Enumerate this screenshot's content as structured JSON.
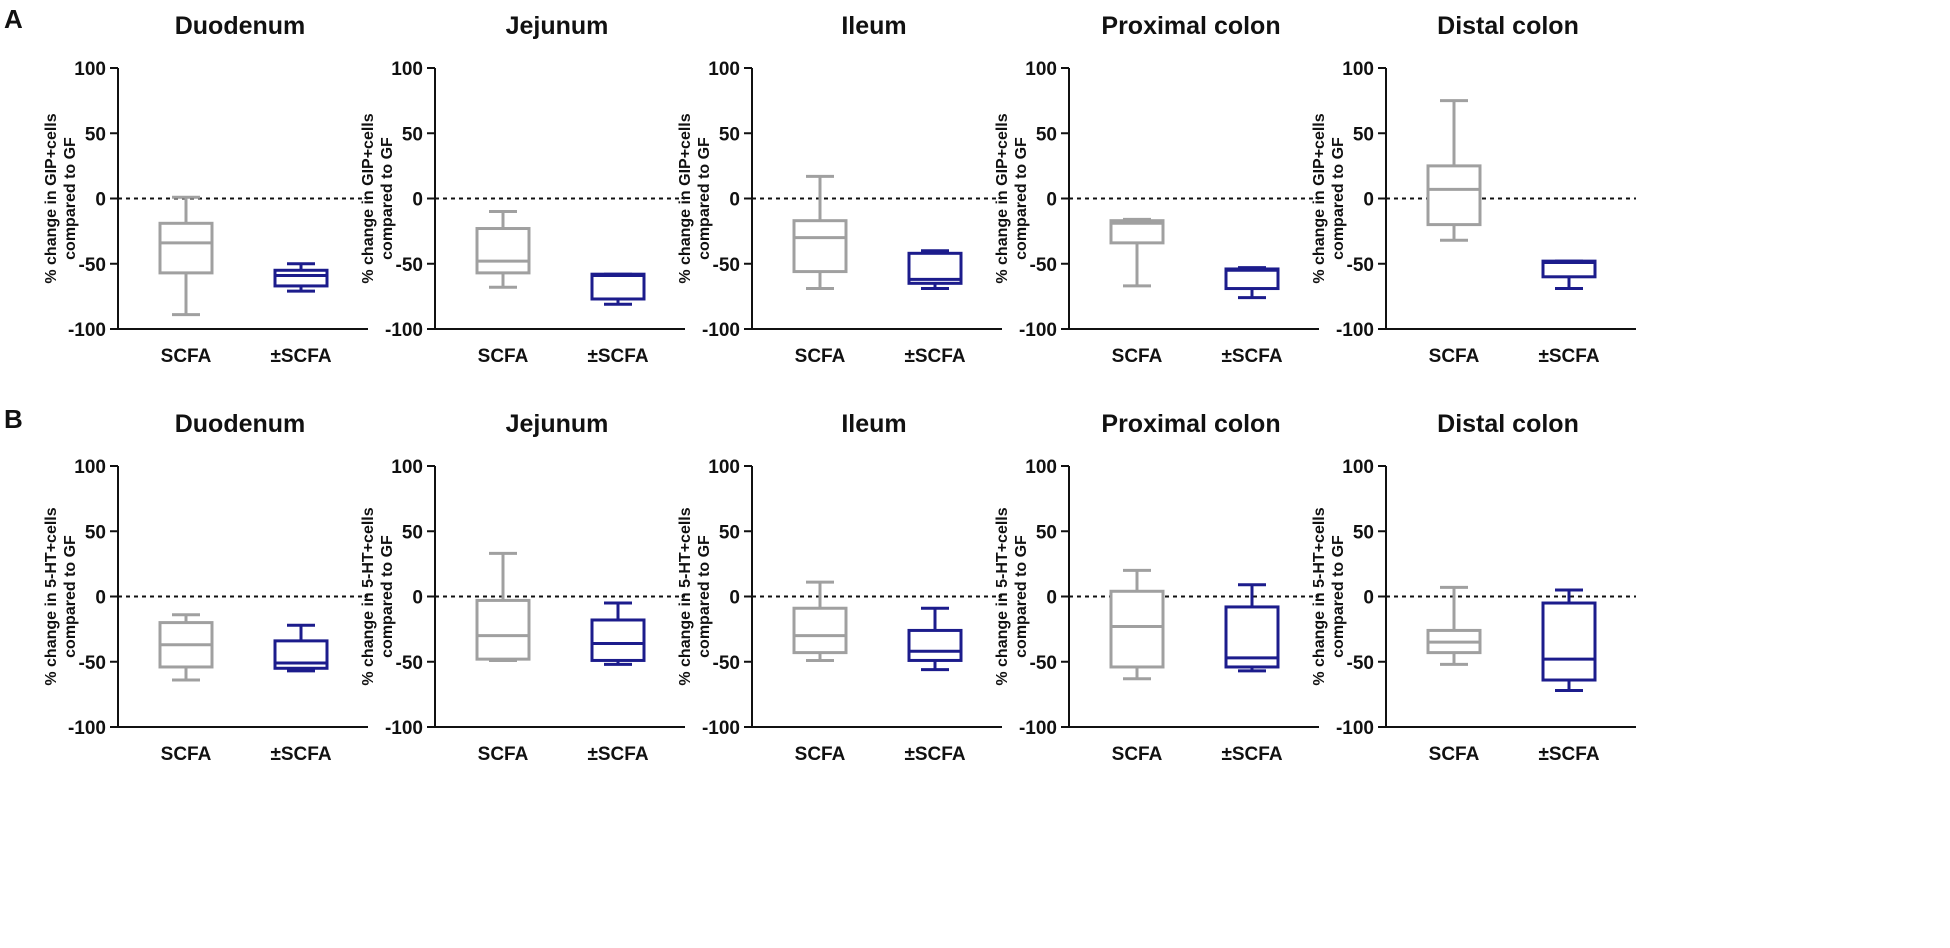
{
  "panels": [
    {
      "letter": "A"
    },
    {
      "letter": "B"
    }
  ],
  "chart_data": [
    {
      "type": "box",
      "panel": "A",
      "title": "Duodenum",
      "ylabel": [
        "% change in GIP+cells",
        "compared to GF"
      ],
      "ylim": [
        -100,
        100
      ],
      "yticks": [
        "100",
        "50",
        "0",
        "-50",
        "-100"
      ],
      "reference_line": 0,
      "categories": [
        "SCFA",
        "±SCFA"
      ],
      "series": [
        {
          "name": "SCFA",
          "color": "#a0a0a0",
          "min": -89,
          "q1": -57,
          "median": -34,
          "q3": -19,
          "max": 1
        },
        {
          "name": "±SCFA",
          "color": "#1c1c8c",
          "min": -71,
          "q1": -67,
          "median": -59,
          "q3": -55,
          "max": -50
        }
      ]
    },
    {
      "type": "box",
      "panel": "A",
      "title": "Jejunum",
      "ylabel": [
        "% change in GIP+cells",
        "compared to GF"
      ],
      "ylim": [
        -100,
        100
      ],
      "yticks": [
        "100",
        "50",
        "0",
        "-50",
        "-100"
      ],
      "reference_line": 0,
      "categories": [
        "SCFA",
        "±SCFA"
      ],
      "series": [
        {
          "name": "SCFA",
          "color": "#a0a0a0",
          "min": -68,
          "q1": -57,
          "median": -48,
          "q3": -23,
          "max": -10
        },
        {
          "name": "±SCFA",
          "color": "#1c1c8c",
          "min": -81,
          "q1": -77,
          "median": -59,
          "q3": -58,
          "max": -58
        }
      ]
    },
    {
      "type": "box",
      "panel": "A",
      "title": "Ileum",
      "ylabel": [
        "% change in GIP+cells",
        "compared to GF"
      ],
      "ylim": [
        -100,
        100
      ],
      "yticks": [
        "100",
        "50",
        "0",
        "-50",
        "-100"
      ],
      "reference_line": 0,
      "categories": [
        "SCFA",
        "±SCFA"
      ],
      "series": [
        {
          "name": "SCFA",
          "color": "#a0a0a0",
          "min": -69,
          "q1": -56,
          "median": -30,
          "q3": -17,
          "max": 17
        },
        {
          "name": "±SCFA",
          "color": "#1c1c8c",
          "min": -69,
          "q1": -65,
          "median": -62,
          "q3": -42,
          "max": -40
        }
      ]
    },
    {
      "type": "box",
      "panel": "A",
      "title": "Proximal colon",
      "ylabel": [
        "% change in GIP+cells",
        "compared to GF"
      ],
      "ylim": [
        -100,
        100
      ],
      "yticks": [
        "100",
        "50",
        "0",
        "-50",
        "-100"
      ],
      "reference_line": 0,
      "categories": [
        "SCFA",
        "±SCFA"
      ],
      "series": [
        {
          "name": "SCFA",
          "color": "#a0a0a0",
          "min": -67,
          "q1": -34,
          "median": -19,
          "q3": -17,
          "max": -16
        },
        {
          "name": "±SCFA",
          "color": "#1c1c8c",
          "min": -76,
          "q1": -69,
          "median": -55,
          "q3": -54,
          "max": -53
        }
      ]
    },
    {
      "type": "box",
      "panel": "A",
      "title": "Distal colon",
      "ylabel": [
        "% change in GIP+cells",
        "compared to GF"
      ],
      "ylim": [
        -100,
        100
      ],
      "yticks": [
        "100",
        "50",
        "0",
        "-50",
        "-100"
      ],
      "reference_line": 0,
      "categories": [
        "SCFA",
        "±SCFA"
      ],
      "series": [
        {
          "name": "SCFA",
          "color": "#a0a0a0",
          "min": -32,
          "q1": -20,
          "median": 7,
          "q3": 25,
          "max": 75
        },
        {
          "name": "±SCFA",
          "color": "#1c1c8c",
          "min": -69,
          "q1": -60,
          "median": -49,
          "q3": -48,
          "max": -48
        }
      ]
    },
    {
      "type": "box",
      "panel": "B",
      "title": "Duodenum",
      "ylabel": [
        "% change in 5-HT+cells",
        "compared to GF"
      ],
      "ylim": [
        -100,
        100
      ],
      "yticks": [
        "100",
        "50",
        "0",
        "-50",
        "-100"
      ],
      "reference_line": 0,
      "categories": [
        "SCFA",
        "±SCFA"
      ],
      "series": [
        {
          "name": "SCFA",
          "color": "#a0a0a0",
          "min": -64,
          "q1": -54,
          "median": -37,
          "q3": -20,
          "max": -14
        },
        {
          "name": "±SCFA",
          "color": "#1c1c8c",
          "min": -57,
          "q1": -55,
          "median": -51,
          "q3": -34,
          "max": -22
        }
      ]
    },
    {
      "type": "box",
      "panel": "B",
      "title": "Jejunum",
      "ylabel": [
        "% change in 5-HT+cells",
        "compared to GF"
      ],
      "ylim": [
        -100,
        100
      ],
      "yticks": [
        "100",
        "50",
        "0",
        "-50",
        "-100"
      ],
      "reference_line": 0,
      "categories": [
        "SCFA",
        "±SCFA"
      ],
      "series": [
        {
          "name": "SCFA",
          "color": "#a0a0a0",
          "min": -49,
          "q1": -48,
          "median": -30,
          "q3": -3,
          "max": 33
        },
        {
          "name": "±SCFA",
          "color": "#1c1c8c",
          "min": -52,
          "q1": -49,
          "median": -36,
          "q3": -18,
          "max": -5
        }
      ]
    },
    {
      "type": "box",
      "panel": "B",
      "title": "Ileum",
      "ylabel": [
        "% change in 5-HT+cells",
        "compared to GF"
      ],
      "ylim": [
        -100,
        100
      ],
      "yticks": [
        "100",
        "50",
        "0",
        "-50",
        "-100"
      ],
      "reference_line": 0,
      "categories": [
        "SCFA",
        "±SCFA"
      ],
      "series": [
        {
          "name": "SCFA",
          "color": "#a0a0a0",
          "min": -49,
          "q1": -43,
          "median": -30,
          "q3": -9,
          "max": 11
        },
        {
          "name": "±SCFA",
          "color": "#1c1c8c",
          "min": -56,
          "q1": -49,
          "median": -42,
          "q3": -26,
          "max": -9
        }
      ]
    },
    {
      "type": "box",
      "panel": "B",
      "title": "Proximal colon",
      "ylabel": [
        "% change in 5-HT+cells",
        "compared to GF"
      ],
      "ylim": [
        -100,
        100
      ],
      "yticks": [
        "100",
        "50",
        "0",
        "-50",
        "-100"
      ],
      "reference_line": 0,
      "categories": [
        "SCFA",
        "±SCFA"
      ],
      "series": [
        {
          "name": "SCFA",
          "color": "#a0a0a0",
          "min": -63,
          "q1": -54,
          "median": -23,
          "q3": 4,
          "max": 20
        },
        {
          "name": "±SCFA",
          "color": "#1c1c8c",
          "min": -57,
          "q1": -54,
          "median": -47,
          "q3": -8,
          "max": 9
        }
      ]
    },
    {
      "type": "box",
      "panel": "B",
      "title": "Distal colon",
      "ylabel": [
        "% change in 5-HT+cells",
        "compared to GF"
      ],
      "ylim": [
        -100,
        100
      ],
      "yticks": [
        "100",
        "50",
        "0",
        "-50",
        "-100"
      ],
      "reference_line": 0,
      "categories": [
        "SCFA",
        "±SCFA"
      ],
      "series": [
        {
          "name": "SCFA",
          "color": "#a0a0a0",
          "min": -52,
          "q1": -43,
          "median": -35,
          "q3": -26,
          "max": 7
        },
        {
          "name": "±SCFA",
          "color": "#1c1c8c",
          "min": -72,
          "q1": -64,
          "median": -48,
          "q3": -5,
          "max": 5
        }
      ]
    }
  ]
}
